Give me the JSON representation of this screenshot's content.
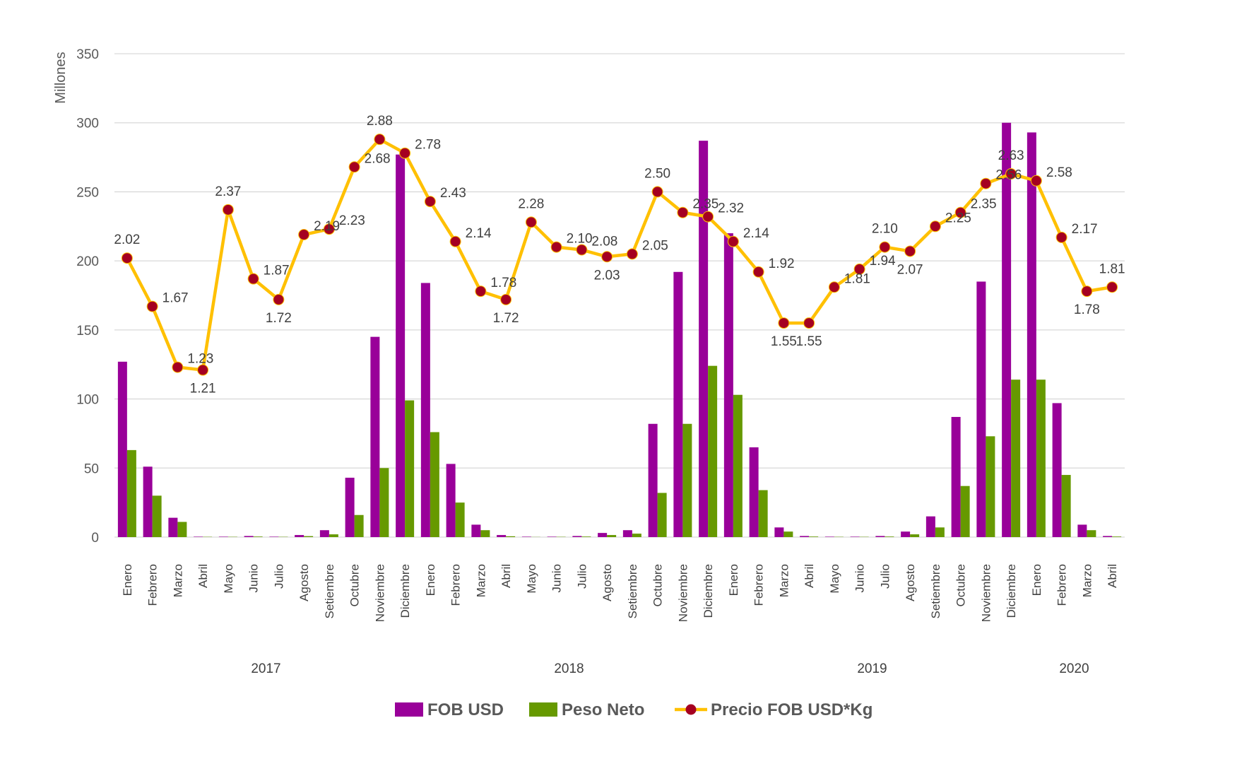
{
  "chart_data": {
    "type": "bar",
    "ylabel": "Millones",
    "ylim": [
      0,
      350
    ],
    "yticks": [
      0,
      50,
      100,
      150,
      200,
      250,
      300,
      350
    ],
    "grid": true,
    "legend_position": "bottom",
    "categories": [
      "Enero",
      "Febrero",
      "Marzo",
      "Abril",
      "Mayo",
      "Junio",
      "Julio",
      "Agosto",
      "Setiembre",
      "Octubre",
      "Noviembre",
      "Diciembre",
      "Enero",
      "Febrero",
      "Marzo",
      "Abril",
      "Mayo",
      "Junio",
      "Julio",
      "Agosto",
      "Setiembre",
      "Octubre",
      "Noviembre",
      "Diciembre",
      "Enero",
      "Febrero",
      "Marzo",
      "Abril",
      "Mayo",
      "Junio",
      "Julio",
      "Agosto",
      "Setiembre",
      "Octubre",
      "Noviembre",
      "Diciembre",
      "Enero",
      "Febrero",
      "Marzo",
      "Abril"
    ],
    "year_groups": [
      {
        "label": "2017",
        "start": 0,
        "end": 11
      },
      {
        "label": "2018",
        "start": 12,
        "end": 23
      },
      {
        "label": "2019",
        "start": 24,
        "end": 35
      },
      {
        "label": "2020",
        "start": 36,
        "end": 39
      }
    ],
    "series": [
      {
        "name": "FOB USD",
        "type": "bar",
        "color": "#990099",
        "values": [
          127,
          51,
          14,
          0.3,
          0.3,
          0.8,
          0.3,
          1.5,
          5,
          43,
          145,
          277,
          184,
          53,
          9,
          1.5,
          0.3,
          0.3,
          0.8,
          3,
          5,
          82,
          192,
          287,
          220,
          65,
          7,
          0.8,
          0.3,
          0.3,
          0.8,
          4,
          15,
          87,
          185,
          300,
          293,
          97,
          9,
          0.8
        ]
      },
      {
        "name": "Peso Neto",
        "type": "bar",
        "color": "#669900",
        "values": [
          63,
          30,
          11,
          0.2,
          0.2,
          0.4,
          0.2,
          0.7,
          2,
          16,
          50,
          99,
          76,
          25,
          5,
          0.6,
          0.1,
          0.2,
          0.4,
          1.5,
          2.5,
          32,
          82,
          124,
          103,
          34,
          4,
          0.4,
          0.2,
          0.2,
          0.4,
          2,
          7,
          37,
          73,
          114,
          114,
          45,
          5,
          0.4
        ]
      },
      {
        "name": "Precio FOB USD*Kg",
        "type": "line",
        "color": "#FFC000",
        "marker_color": "#A50021",
        "values": [
          2.02,
          1.67,
          1.23,
          1.21,
          2.37,
          1.87,
          1.72,
          2.19,
          2.23,
          2.68,
          2.88,
          2.78,
          2.43,
          2.14,
          1.78,
          1.72,
          2.28,
          2.1,
          2.08,
          2.03,
          2.05,
          2.5,
          2.35,
          2.32,
          2.14,
          1.92,
          1.55,
          1.55,
          1.81,
          1.94,
          2.1,
          2.07,
          2.25,
          2.35,
          2.56,
          2.63,
          2.58,
          2.17,
          1.78,
          1.81
        ],
        "labels": [
          "2.02",
          "1.67",
          "1.23",
          "1.21",
          "2.37",
          "1.87",
          "1.72",
          "2.19",
          "2.23",
          "2.68",
          "2.88",
          "2.78",
          "2.43",
          "2.14",
          "1.78",
          "1.72",
          "2.28",
          "2.10",
          "2.08",
          "2.03",
          "2.05",
          "2.50",
          "2.35",
          "2.32",
          "2.14",
          "1.92",
          "1.55",
          "1.55",
          "1.81",
          "1.94",
          "2.10",
          "2.07",
          "2.25",
          "2.35",
          "2.56",
          "2.63",
          "2.58",
          "2.17",
          "1.78",
          "1.81"
        ]
      }
    ]
  }
}
